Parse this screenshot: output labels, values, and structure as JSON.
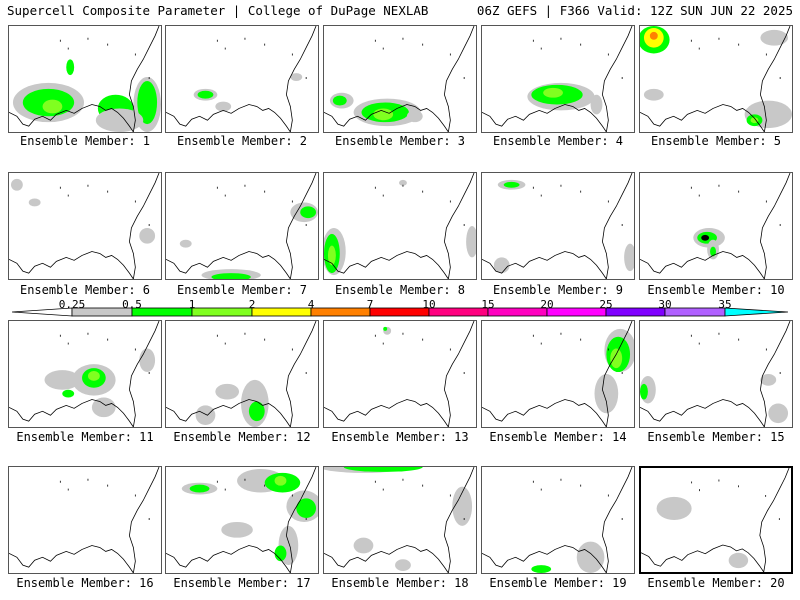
{
  "header": {
    "left": "Supercell Composite Parameter | College of DuPage NEXLAB",
    "right": "06Z GEFS | F366 Valid: 12Z SUN JUN 22 2025"
  },
  "legend": {
    "ticks": [
      "0.25",
      "0.5",
      "1",
      "2",
      "4",
      "7",
      "10",
      "15",
      "20",
      "25",
      "30",
      "35"
    ],
    "colors": [
      "#ffffff",
      "#c8c8c8",
      "#00ff00",
      "#80ff20",
      "#ffff00",
      "#ff8000",
      "#ff0000",
      "#ff0080",
      "#ff00c0",
      "#ff00ff",
      "#8000ff",
      "#b060ff",
      "#00ffff"
    ]
  },
  "members": [
    {
      "label": "Ensemble Member: 1"
    },
    {
      "label": "Ensemble Member: 2"
    },
    {
      "label": "Ensemble Member: 3"
    },
    {
      "label": "Ensemble Member: 4"
    },
    {
      "label": "Ensemble Member: 5"
    },
    {
      "label": "Ensemble Member: 6"
    },
    {
      "label": "Ensemble Member: 7"
    },
    {
      "label": "Ensemble Member: 8"
    },
    {
      "label": "Ensemble Member: 9"
    },
    {
      "label": "Ensemble Member: 10"
    },
    {
      "label": "Ensemble Member: 11"
    },
    {
      "label": "Ensemble Member: 12"
    },
    {
      "label": "Ensemble Member: 13"
    },
    {
      "label": "Ensemble Member: 14"
    },
    {
      "label": "Ensemble Member: 15"
    },
    {
      "label": "Ensemble Member: 16"
    },
    {
      "label": "Ensemble Member: 17"
    },
    {
      "label": "Ensemble Member: 18"
    },
    {
      "label": "Ensemble Member: 19"
    },
    {
      "label": "Ensemble Member: 20",
      "selected": true
    }
  ]
}
